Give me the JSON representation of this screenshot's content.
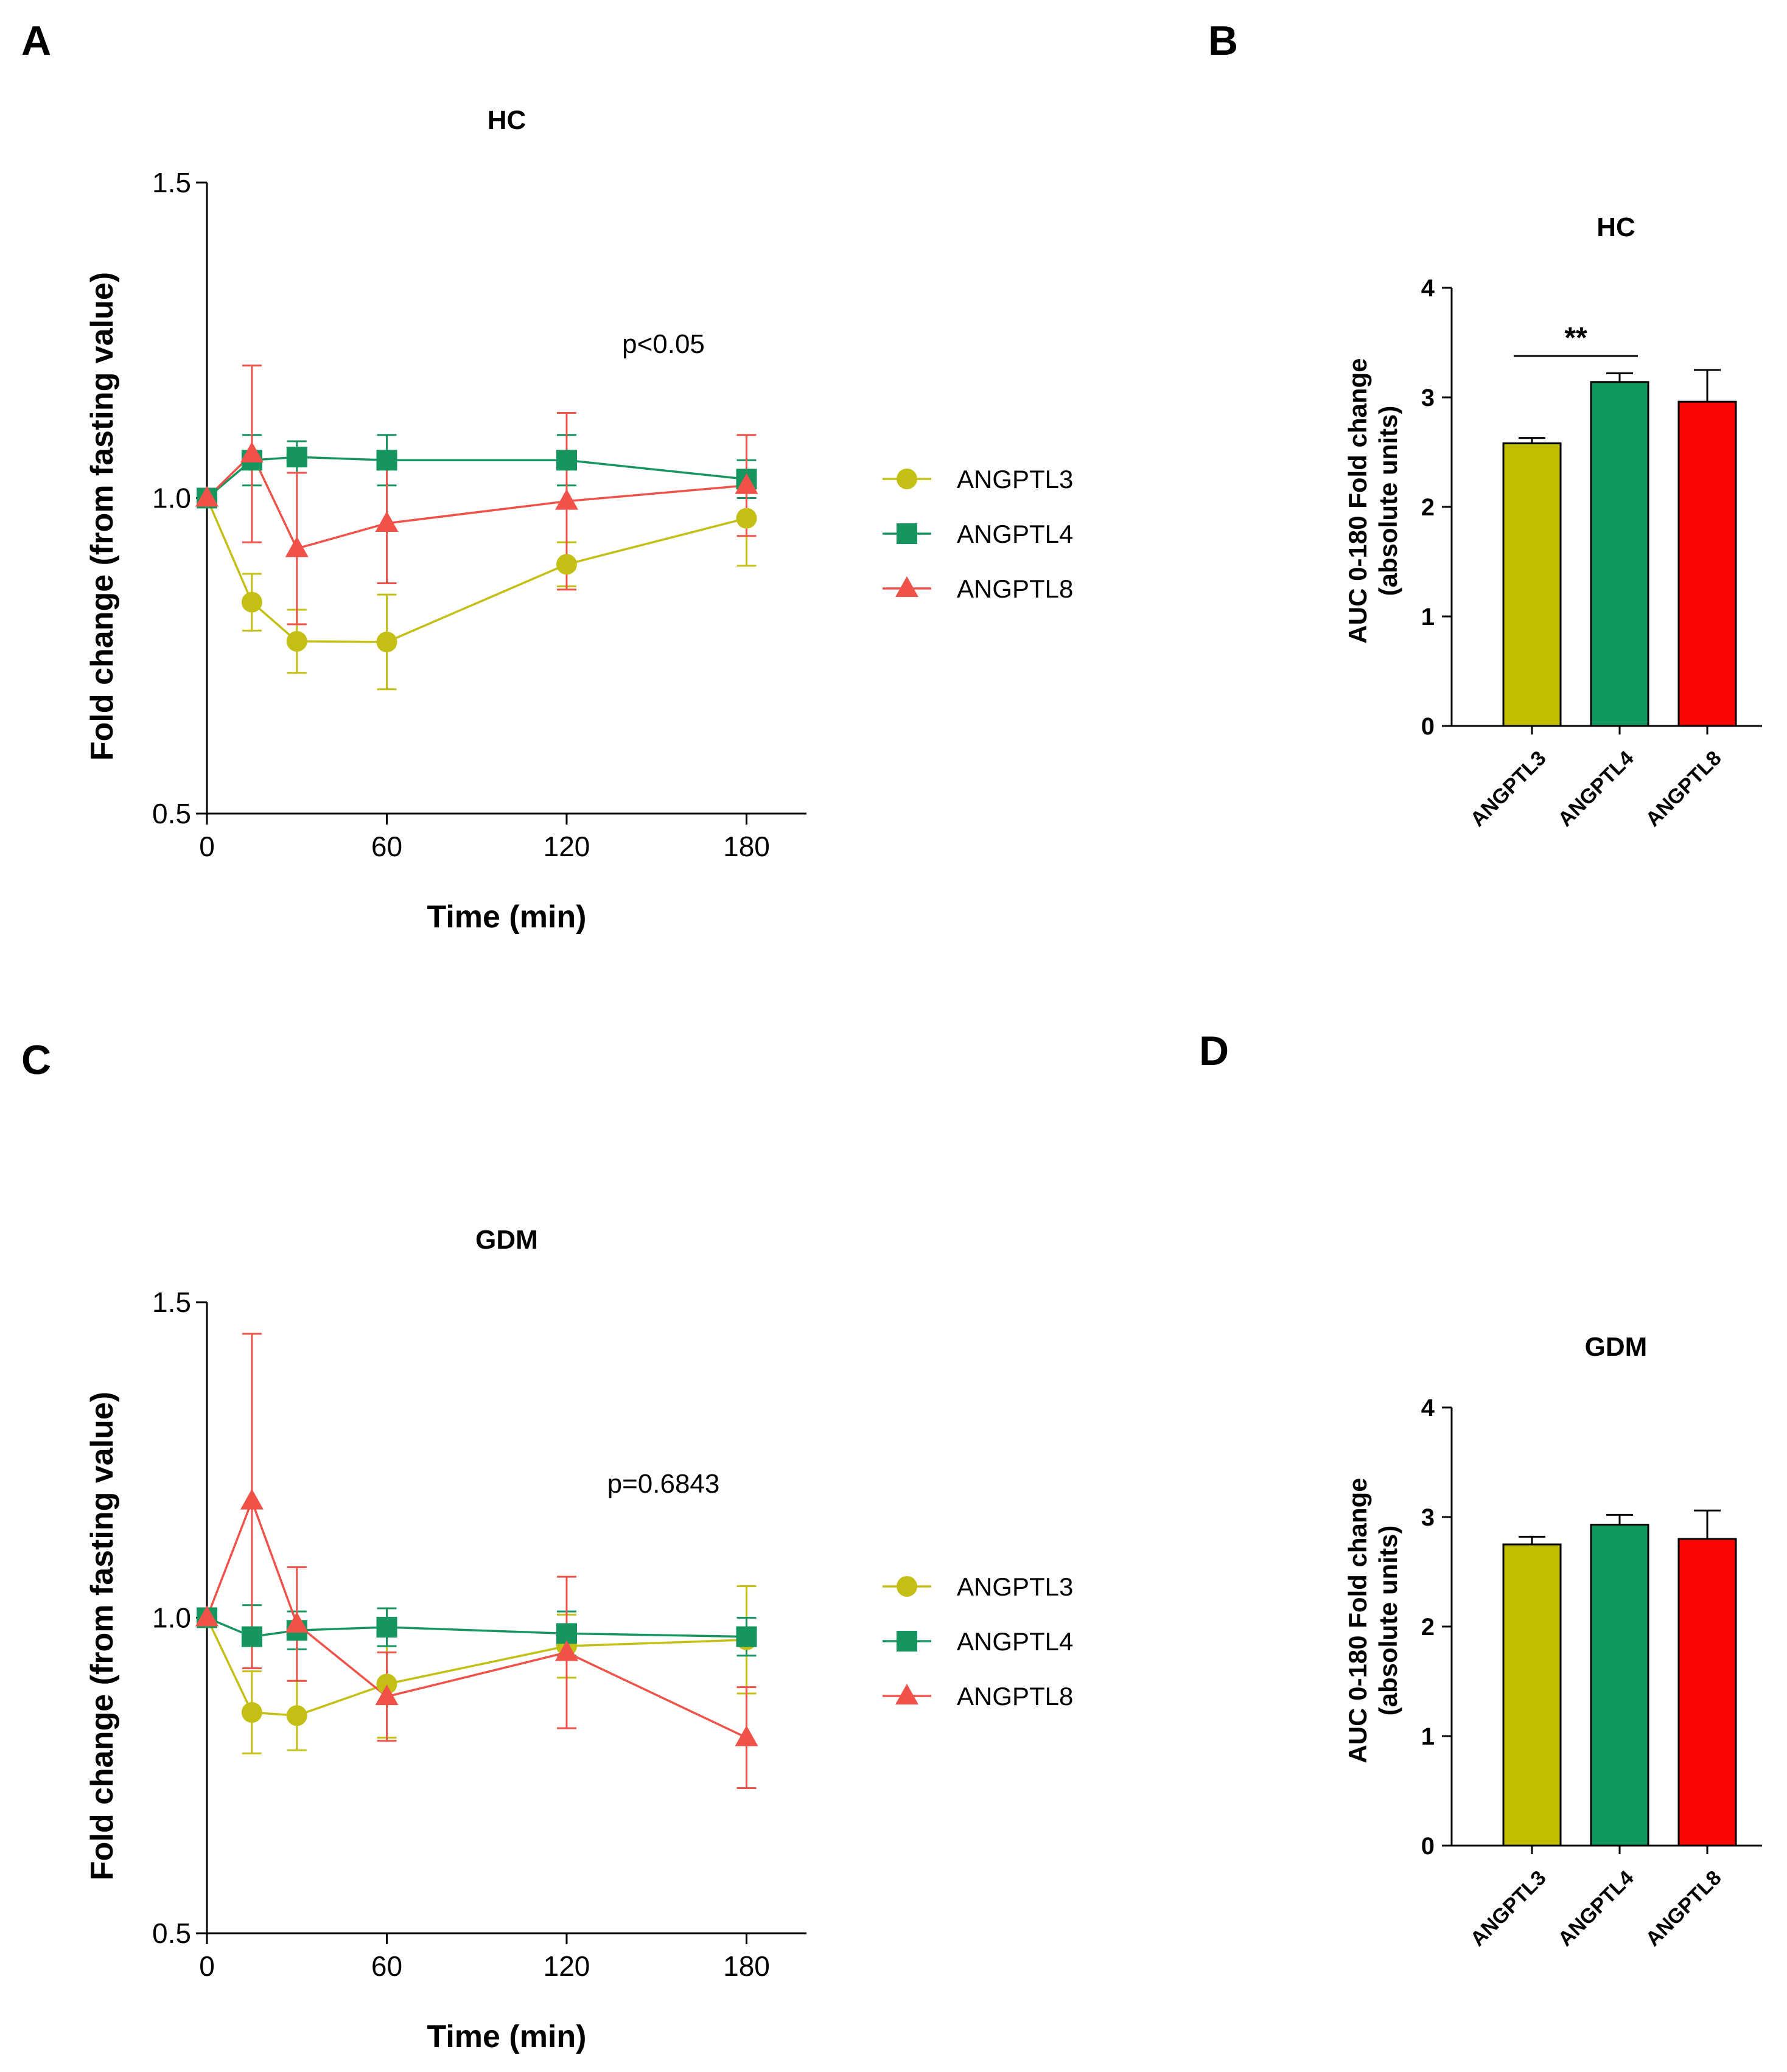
{
  "figure": {
    "panel_labels": [
      "A",
      "B",
      "C",
      "D"
    ]
  },
  "chart_data": [
    {
      "panel": "A",
      "type": "line",
      "title": "HC",
      "xlabel": "Time (min)",
      "ylabel": "Fold change (from fasting value)",
      "xlim": [
        0,
        200
      ],
      "ylim": [
        0.5,
        1.5
      ],
      "xticks": [
        0,
        60,
        120,
        180
      ],
      "yticks": [
        0.5,
        1.0,
        1.5
      ],
      "ytick_labels": [
        "0.5",
        "1.0",
        "1.5"
      ],
      "annotation": "p<0.05",
      "legend_position": "right",
      "x": [
        0,
        15,
        30,
        60,
        120,
        180
      ],
      "series": [
        {
          "name": "ANGPTL3",
          "color": "#c4bf14",
          "marker": "circle",
          "values": [
            1.0,
            0.835,
            0.773,
            0.772,
            0.895,
            0.968
          ],
          "errors": [
            0,
            0.045,
            0.05,
            0.075,
            0.035,
            0.075
          ]
        },
        {
          "name": "ANGPTL4",
          "color": "#17955f",
          "marker": "square",
          "values": [
            1.0,
            1.06,
            1.065,
            1.06,
            1.06,
            1.03
          ],
          "errors": [
            0,
            0.04,
            0.025,
            0.04,
            0.04,
            0.03
          ]
        },
        {
          "name": "ANGPTL8",
          "color": "#f0524a",
          "marker": "triangle",
          "values": [
            1.0,
            1.07,
            0.92,
            0.96,
            0.995,
            1.02
          ],
          "errors": [
            0,
            0.14,
            0.12,
            0.095,
            0.14,
            0.08
          ]
        }
      ]
    },
    {
      "panel": "B",
      "type": "bar",
      "title": "HC",
      "ylabel_lines": [
        "AUC 0-180 Fold change",
        "(absolute units)"
      ],
      "ylim": [
        0,
        4
      ],
      "yticks": [
        0,
        1,
        2,
        3,
        4
      ],
      "categories": [
        "ANGPTL3",
        "ANGPTL4",
        "ANGPTL8"
      ],
      "values": [
        2.58,
        3.14,
        2.96
      ],
      "errors": [
        0.05,
        0.08,
        0.29
      ],
      "colors": [
        "#c2bd00",
        "#11985f",
        "#fc0505"
      ],
      "significance": {
        "label": "**",
        "between": [
          0,
          1
        ]
      }
    },
    {
      "panel": "C",
      "type": "line",
      "title": "GDM",
      "xlabel": "Time (min)",
      "ylabel": "Fold change (from fasting value)",
      "xlim": [
        0,
        200
      ],
      "ylim": [
        0.5,
        1.5
      ],
      "xticks": [
        0,
        60,
        120,
        180
      ],
      "yticks": [
        0.5,
        1.0,
        1.5
      ],
      "ytick_labels": [
        "0.5",
        "1.0",
        "1.5"
      ],
      "annotation": "p=0.6843",
      "legend_position": "right",
      "x": [
        0,
        15,
        30,
        60,
        120,
        180
      ],
      "series": [
        {
          "name": "ANGPTL3",
          "color": "#c4bf14",
          "marker": "circle",
          "values": [
            1.0,
            0.85,
            0.845,
            0.895,
            0.955,
            0.965
          ],
          "errors": [
            0,
            0.065,
            0.055,
            0.085,
            0.05,
            0.085
          ]
        },
        {
          "name": "ANGPTL4",
          "color": "#17955f",
          "marker": "square",
          "values": [
            1.0,
            0.97,
            0.98,
            0.985,
            0.975,
            0.97
          ],
          "errors": [
            0,
            0.05,
            0.03,
            0.03,
            0.035,
            0.03
          ]
        },
        {
          "name": "ANGPTL8",
          "color": "#f0524a",
          "marker": "triangle",
          "values": [
            1.0,
            1.185,
            0.99,
            0.875,
            0.945,
            0.81
          ],
          "errors": [
            0,
            0.265,
            0.09,
            0.07,
            0.12,
            0.08
          ]
        }
      ]
    },
    {
      "panel": "D",
      "type": "bar",
      "title": "GDM",
      "ylabel_lines": [
        "AUC 0-180 Fold change",
        "(absolute units)"
      ],
      "ylim": [
        0,
        4
      ],
      "yticks": [
        0,
        1,
        2,
        3,
        4
      ],
      "categories": [
        "ANGPTL3",
        "ANGPTL4",
        "ANGPTL8"
      ],
      "values": [
        2.75,
        2.93,
        2.8
      ],
      "errors": [
        0.07,
        0.09,
        0.26
      ],
      "colors": [
        "#c2bd00",
        "#11985f",
        "#fc0505"
      ]
    }
  ]
}
